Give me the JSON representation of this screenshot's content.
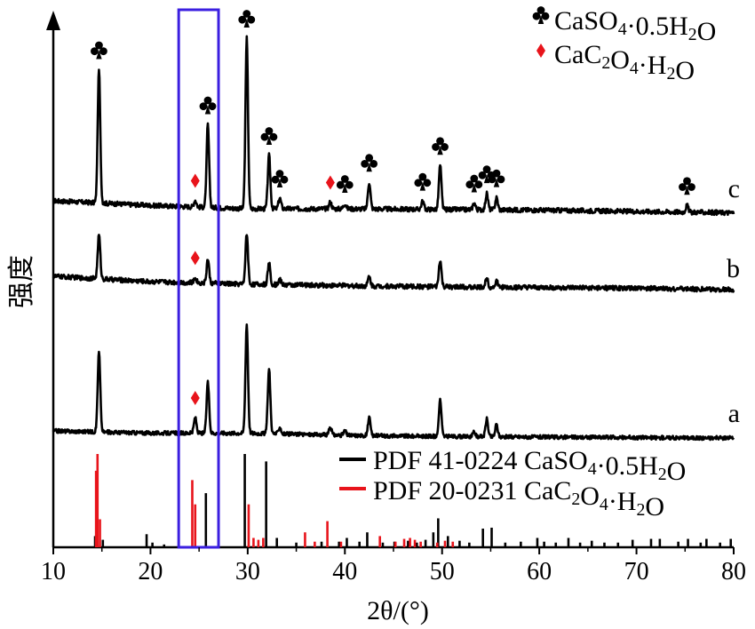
{
  "chart_data": {
    "type": "line",
    "xlabel": "2θ/(°)",
    "ylabel": "强度",
    "xlim": [
      10,
      80
    ],
    "x_ticks": [
      "10",
      "20",
      "30",
      "40",
      "50",
      "60",
      "70",
      "80"
    ],
    "grid": false,
    "legend_top": [
      {
        "symbol": "club",
        "color": "#000000",
        "label_main": "CaSO",
        "sub1": "4",
        "label_mid": "·0.5H",
        "sub2": "2",
        "label_end": "O"
      },
      {
        "symbol": "diamond",
        "color": "#e8141b",
        "label_main": "CaC",
        "sub1": "2",
        "label_mid": "O",
        "sub2": "4",
        "label_end": "·H",
        "sub3": "2",
        "label_tail": "O"
      }
    ],
    "legend_bottom": [
      {
        "color": "#000000",
        "text_a": "PDF 41-0224 CaSO",
        "sub1": "4",
        "text_b": "·0.5H",
        "sub2": "2",
        "text_c": "O"
      },
      {
        "color": "#e8141b",
        "text_a": "PDF 20-0231 CaC",
        "sub1": "2",
        "text_b": "O",
        "sub2": "4",
        "text_c": "·H",
        "sub3": "2",
        "text_d": "O"
      }
    ],
    "highlight_range": [
      22.9,
      27.0
    ],
    "highlight_color": "#3b1fe0",
    "series": [
      {
        "name": "c",
        "baseline": [
          [
            10,
            0.06
          ],
          [
            20,
            0.025
          ],
          [
            30,
            0.0
          ],
          [
            40,
            0.0
          ],
          [
            50,
            -0.005
          ],
          [
            60,
            -0.01
          ],
          [
            70,
            -0.02
          ],
          [
            80,
            -0.03
          ]
        ],
        "peaks": [
          [
            14.7,
            1.0
          ],
          [
            24.6,
            0.05
          ],
          [
            25.9,
            0.62
          ],
          [
            29.9,
            1.28
          ],
          [
            32.2,
            0.4
          ],
          [
            33.3,
            0.08
          ],
          [
            38.5,
            0.05
          ],
          [
            40.0,
            0.04
          ],
          [
            42.5,
            0.2
          ],
          [
            48.0,
            0.06
          ],
          [
            49.8,
            0.33
          ],
          [
            53.3,
            0.05
          ],
          [
            54.6,
            0.12
          ],
          [
            55.6,
            0.09
          ],
          [
            75.2,
            0.05
          ]
        ]
      },
      {
        "name": "b",
        "baseline": [
          [
            10,
            0.06
          ],
          [
            20,
            0.02
          ],
          [
            30,
            0.0
          ],
          [
            40,
            -0.01
          ],
          [
            50,
            -0.02
          ],
          [
            60,
            -0.025
          ],
          [
            70,
            -0.03
          ],
          [
            80,
            -0.04
          ]
        ],
        "peaks": [
          [
            14.7,
            0.33
          ],
          [
            24.6,
            0.04
          ],
          [
            25.9,
            0.18
          ],
          [
            29.9,
            0.38
          ],
          [
            32.2,
            0.16
          ],
          [
            33.3,
            0.04
          ],
          [
            42.5,
            0.07
          ],
          [
            49.8,
            0.2
          ],
          [
            54.6,
            0.07
          ],
          [
            55.6,
            0.05
          ]
        ]
      },
      {
        "name": "a",
        "baseline": [
          [
            10,
            0.04
          ],
          [
            20,
            0.02
          ],
          [
            30,
            0.02
          ],
          [
            40,
            0.0
          ],
          [
            50,
            -0.01
          ],
          [
            60,
            -0.015
          ],
          [
            70,
            -0.02
          ],
          [
            80,
            -0.025
          ]
        ],
        "peaks": [
          [
            14.7,
            0.72
          ],
          [
            24.6,
            0.14
          ],
          [
            25.9,
            0.46
          ],
          [
            29.9,
            0.98
          ],
          [
            32.2,
            0.58
          ],
          [
            33.3,
            0.06
          ],
          [
            38.5,
            0.07
          ],
          [
            40.0,
            0.04
          ],
          [
            42.5,
            0.16
          ],
          [
            49.8,
            0.33
          ],
          [
            53.3,
            0.04
          ],
          [
            54.6,
            0.16
          ],
          [
            55.6,
            0.11
          ]
        ]
      }
    ],
    "markers": [
      {
        "series": "c",
        "x": 14.7,
        "symbol": "club"
      },
      {
        "series": "c",
        "x": 24.6,
        "symbol": "diamond"
      },
      {
        "series": "c",
        "x": 25.9,
        "symbol": "club"
      },
      {
        "series": "c",
        "x": 29.9,
        "symbol": "club"
      },
      {
        "series": "c",
        "x": 32.2,
        "symbol": "club"
      },
      {
        "series": "c",
        "x": 33.3,
        "symbol": "club"
      },
      {
        "series": "c",
        "x": 38.5,
        "symbol": "diamond"
      },
      {
        "series": "c",
        "x": 40.0,
        "symbol": "club"
      },
      {
        "series": "c",
        "x": 42.5,
        "symbol": "club"
      },
      {
        "series": "c",
        "x": 48.0,
        "symbol": "club"
      },
      {
        "series": "c",
        "x": 49.8,
        "symbol": "club"
      },
      {
        "series": "c",
        "x": 53.3,
        "symbol": "club"
      },
      {
        "series": "c",
        "x": 54.6,
        "symbol": "club"
      },
      {
        "series": "c",
        "x": 55.6,
        "symbol": "club"
      },
      {
        "series": "c",
        "x": 75.2,
        "symbol": "club"
      },
      {
        "series": "b",
        "x": 24.6,
        "symbol": "diamond"
      },
      {
        "series": "a",
        "x": 24.6,
        "symbol": "diamond"
      }
    ],
    "reference_black": [
      [
        14.3,
        0.12
      ],
      [
        15.1,
        0.08
      ],
      [
        19.6,
        0.14
      ],
      [
        20.2,
        0.05
      ],
      [
        21.4,
        0.03
      ],
      [
        25.7,
        0.58
      ],
      [
        29.7,
        1.0
      ],
      [
        31.9,
        0.92
      ],
      [
        33.0,
        0.1
      ],
      [
        35.0,
        0.05
      ],
      [
        37.6,
        0.06
      ],
      [
        39.4,
        0.06
      ],
      [
        40.2,
        0.1
      ],
      [
        41.5,
        0.06
      ],
      [
        42.3,
        0.16
      ],
      [
        43.9,
        0.05
      ],
      [
        45.1,
        0.06
      ],
      [
        46.5,
        0.07
      ],
      [
        47.4,
        0.05
      ],
      [
        48.3,
        0.08
      ],
      [
        49.1,
        0.16
      ],
      [
        49.6,
        0.31
      ],
      [
        50.6,
        0.12
      ],
      [
        51.8,
        0.07
      ],
      [
        52.8,
        0.05
      ],
      [
        54.2,
        0.2
      ],
      [
        55.1,
        0.21
      ],
      [
        56.5,
        0.05
      ],
      [
        58.1,
        0.06
      ],
      [
        59.8,
        0.1
      ],
      [
        60.5,
        0.06
      ],
      [
        61.7,
        0.05
      ],
      [
        63.0,
        0.1
      ],
      [
        64.2,
        0.05
      ],
      [
        65.4,
        0.07
      ],
      [
        66.7,
        0.05
      ],
      [
        68.1,
        0.05
      ],
      [
        69.6,
        0.08
      ],
      [
        71.5,
        0.09
      ],
      [
        72.4,
        0.09
      ],
      [
        74.3,
        0.06
      ],
      [
        75.3,
        0.09
      ],
      [
        76.6,
        0.05
      ],
      [
        77.2,
        0.09
      ],
      [
        78.6,
        0.05
      ],
      [
        79.7,
        0.09
      ]
    ],
    "reference_red": [
      [
        14.4,
        0.82
      ],
      [
        14.55,
        1.0
      ],
      [
        14.8,
        0.3
      ],
      [
        24.3,
        0.72
      ],
      [
        24.6,
        0.46
      ],
      [
        30.1,
        0.46
      ],
      [
        30.6,
        0.1
      ],
      [
        31.1,
        0.08
      ],
      [
        31.6,
        0.1
      ],
      [
        35.9,
        0.16
      ],
      [
        36.9,
        0.06
      ],
      [
        38.2,
        0.28
      ],
      [
        39.6,
        0.06
      ],
      [
        43.6,
        0.12
      ],
      [
        45.2,
        0.06
      ],
      [
        46.1,
        0.09
      ],
      [
        46.7,
        0.1
      ],
      [
        47.2,
        0.08
      ],
      [
        47.8,
        0.06
      ],
      [
        49.5,
        0.05
      ],
      [
        50.3,
        0.07
      ],
      [
        51.1,
        0.06
      ]
    ]
  }
}
